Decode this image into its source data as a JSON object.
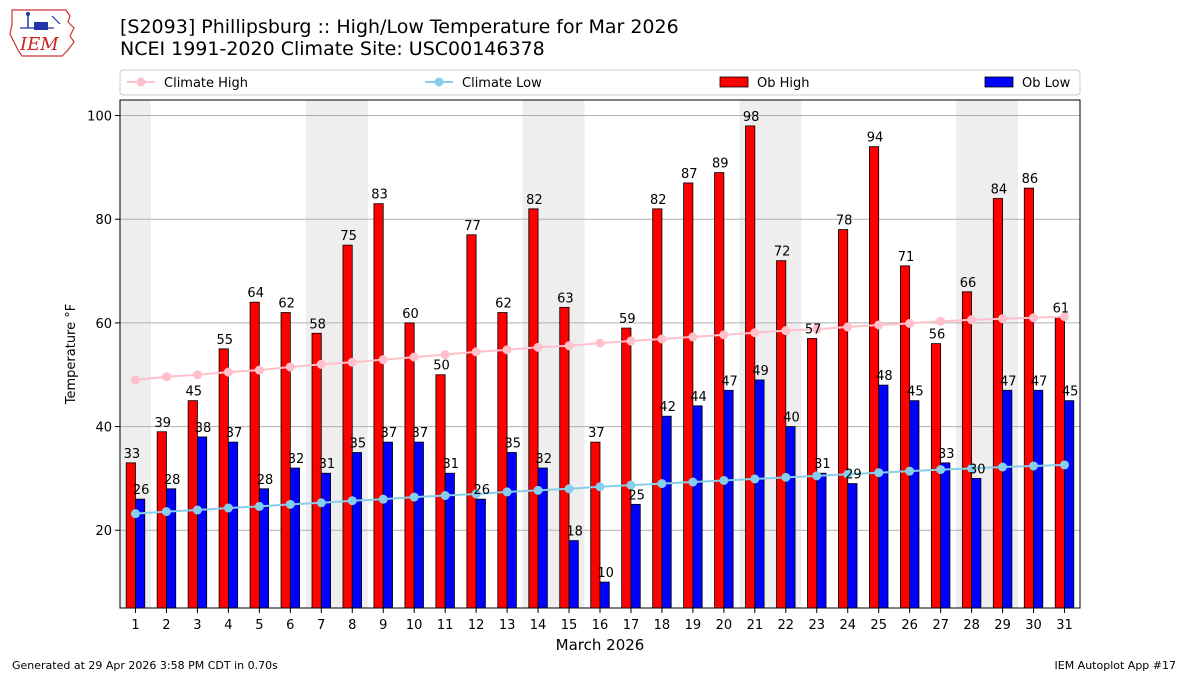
{
  "header": {
    "logo_text": "IEM",
    "title_line1": "[S2093] Phillipsburg :: High/Low Temperature for Mar 2026",
    "title_line2": "NCEI 1991-2020 Climate Site: USC00146378"
  },
  "footer": {
    "generated": "Generated at 29 Apr 2026 3:58 PM CDT in 0.70s",
    "app": "IEM Autoplot App #17"
  },
  "colors": {
    "ob_high": "#ff0000",
    "ob_low": "#0000ff",
    "climate_high": "#ffc0cb",
    "climate_low": "#87ceeb",
    "weekend_shade": "#eeeeee",
    "grid": "#b0b0b0"
  },
  "chart_data": {
    "type": "bar",
    "title": "[S2093] Phillipsburg :: High/Low Temperature for Mar 2026",
    "subtitle": "NCEI 1991-2020 Climate Site: USC00146378",
    "xlabel": "March 2026",
    "ylabel": "Temperature °F",
    "ylim": [
      5,
      103
    ],
    "yticks": [
      20,
      40,
      60,
      80,
      100
    ],
    "grid": true,
    "legend_position": "top",
    "categories": [
      "1",
      "2",
      "3",
      "4",
      "5",
      "6",
      "7",
      "8",
      "9",
      "10",
      "11",
      "12",
      "13",
      "14",
      "15",
      "16",
      "17",
      "18",
      "19",
      "20",
      "21",
      "22",
      "23",
      "24",
      "25",
      "26",
      "27",
      "28",
      "29",
      "30",
      "31"
    ],
    "shaded_days": [
      1,
      7,
      8,
      14,
      15,
      21,
      22,
      28,
      29
    ],
    "series": [
      {
        "name": "Ob High",
        "kind": "bar",
        "values": [
          33,
          39,
          45,
          55,
          64,
          62,
          58,
          75,
          83,
          60,
          50,
          77,
          62,
          82,
          63,
          37,
          59,
          82,
          87,
          89,
          98,
          72,
          57,
          78,
          94,
          71,
          56,
          66,
          84,
          86,
          61
        ]
      },
      {
        "name": "Ob Low",
        "kind": "bar",
        "values": [
          26,
          28,
          38,
          37,
          28,
          32,
          31,
          35,
          37,
          37,
          31,
          26,
          35,
          32,
          18,
          10,
          25,
          42,
          44,
          47,
          49,
          40,
          31,
          29,
          48,
          45,
          33,
          30,
          47,
          47,
          45
        ]
      },
      {
        "name": "Climate High",
        "kind": "line",
        "values": [
          49.0,
          49.6,
          50.0,
          50.5,
          50.9,
          51.5,
          52.0,
          52.4,
          52.9,
          53.4,
          53.9,
          54.4,
          54.8,
          55.3,
          55.6,
          56.1,
          56.5,
          56.9,
          57.3,
          57.7,
          58.1,
          58.5,
          58.8,
          59.2,
          59.6,
          59.9,
          60.3,
          60.6,
          60.8,
          61.0,
          61.2
        ]
      },
      {
        "name": "Climate Low",
        "kind": "line",
        "values": [
          23.2,
          23.6,
          23.9,
          24.3,
          24.6,
          25.0,
          25.3,
          25.7,
          26.0,
          26.4,
          26.7,
          27.0,
          27.4,
          27.7,
          28.0,
          28.4,
          28.7,
          29.0,
          29.3,
          29.6,
          29.9,
          30.2,
          30.5,
          30.8,
          31.1,
          31.4,
          31.7,
          31.9,
          32.2,
          32.4,
          32.6
        ]
      }
    ]
  }
}
